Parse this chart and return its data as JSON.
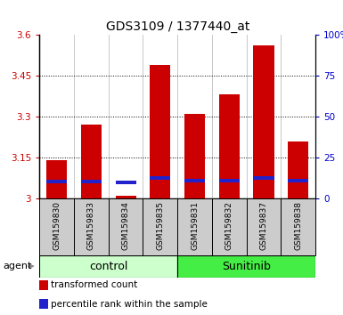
{
  "title": "GDS3109 / 1377440_at",
  "samples": [
    "GSM159830",
    "GSM159833",
    "GSM159834",
    "GSM159835",
    "GSM159831",
    "GSM159832",
    "GSM159837",
    "GSM159838"
  ],
  "groups": [
    "control",
    "control",
    "control",
    "control",
    "Sunitinib",
    "Sunitinib",
    "Sunitinib",
    "Sunitinib"
  ],
  "transformed_count": [
    3.14,
    3.27,
    3.01,
    3.49,
    3.31,
    3.38,
    3.56,
    3.21
  ],
  "percentile_rank_bottom": [
    3.055,
    3.055,
    3.052,
    3.068,
    3.06,
    3.06,
    3.068,
    3.06
  ],
  "blue_bar_height": 0.013,
  "ylim_left": [
    3.0,
    3.6
  ],
  "ylim_right": [
    0,
    100
  ],
  "yticks_left": [
    3.0,
    3.15,
    3.3,
    3.45,
    3.6
  ],
  "yticks_right": [
    0,
    25,
    50,
    75,
    100
  ],
  "ytick_labels_left": [
    "3",
    "3.15",
    "3.3",
    "3.45",
    "3.6"
  ],
  "ytick_labels_right": [
    "0",
    "25",
    "50",
    "75",
    "100%"
  ],
  "gridlines": [
    3.15,
    3.3,
    3.45
  ],
  "bar_color_red": "#cc0000",
  "bar_color_blue": "#2222cc",
  "control_color": "#ccffcc",
  "sunitinib_color": "#44ee44",
  "sample_box_color": "#cccccc",
  "bar_width": 0.6,
  "base_value": 3.0,
  "agent_label": "agent",
  "legend_items": [
    "transformed count",
    "percentile rank within the sample"
  ],
  "legend_colors": [
    "#cc0000",
    "#2222cc"
  ],
  "left_tick_color": "#cc0000",
  "right_tick_color": "#0000cc",
  "title_fontsize": 10,
  "tick_fontsize": 7.5,
  "sample_fontsize": 6.5,
  "group_fontsize": 9,
  "legend_fontsize": 7.5
}
